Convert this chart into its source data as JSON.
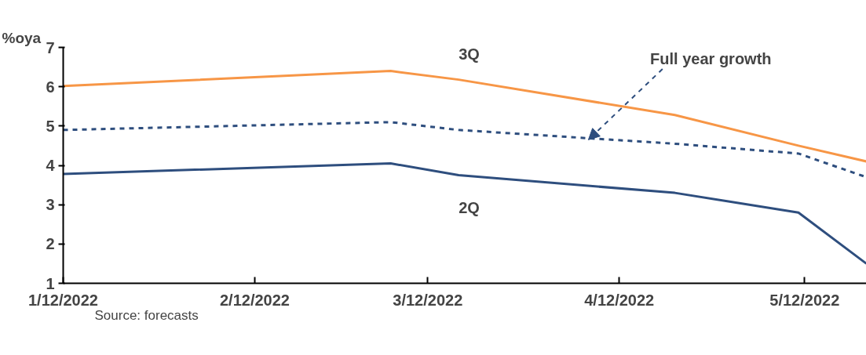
{
  "chart_data": {
    "type": "line",
    "ylabel": "%oya",
    "x": [
      "2022-01-12",
      "2022-03-06",
      "2022-03-17",
      "2022-04-21",
      "2022-05-11",
      "2022-05-22"
    ],
    "series": [
      {
        "name": "3Q",
        "color": "#f79646",
        "values": [
          6.02,
          6.4,
          6.18,
          5.28,
          4.5,
          4.1
        ]
      },
      {
        "color": "#2e4e7e",
        "line_style": "dashed",
        "values": [
          4.9,
          5.1,
          4.9,
          4.55,
          4.3,
          3.7
        ]
      },
      {
        "name": "2Q",
        "color": "#2e4e7e",
        "values": [
          3.78,
          4.05,
          3.75,
          3.3,
          2.8,
          1.5
        ]
      }
    ],
    "xlim": [
      "2022-01-12",
      "2022-05-22"
    ],
    "xticks": [
      {
        "value": "2022-01-12",
        "label": "1/12/2022"
      },
      {
        "value": "2022-02-12",
        "label": "2/12/2022"
      },
      {
        "value": "2022-03-12",
        "label": "3/12/2022"
      },
      {
        "value": "2022-04-12",
        "label": "4/12/2022"
      },
      {
        "value": "2022-05-12",
        "label": "5/12/2022"
      }
    ],
    "ylim": [
      1,
      7
    ],
    "yticks": [
      1,
      2,
      3,
      4,
      5,
      6,
      7
    ],
    "grid": false,
    "marker": "none",
    "annotations": [
      {
        "text": "Full year growth",
        "x": "2022-04-07",
        "y": 4.65
      },
      "Source: forecasts"
    ]
  }
}
